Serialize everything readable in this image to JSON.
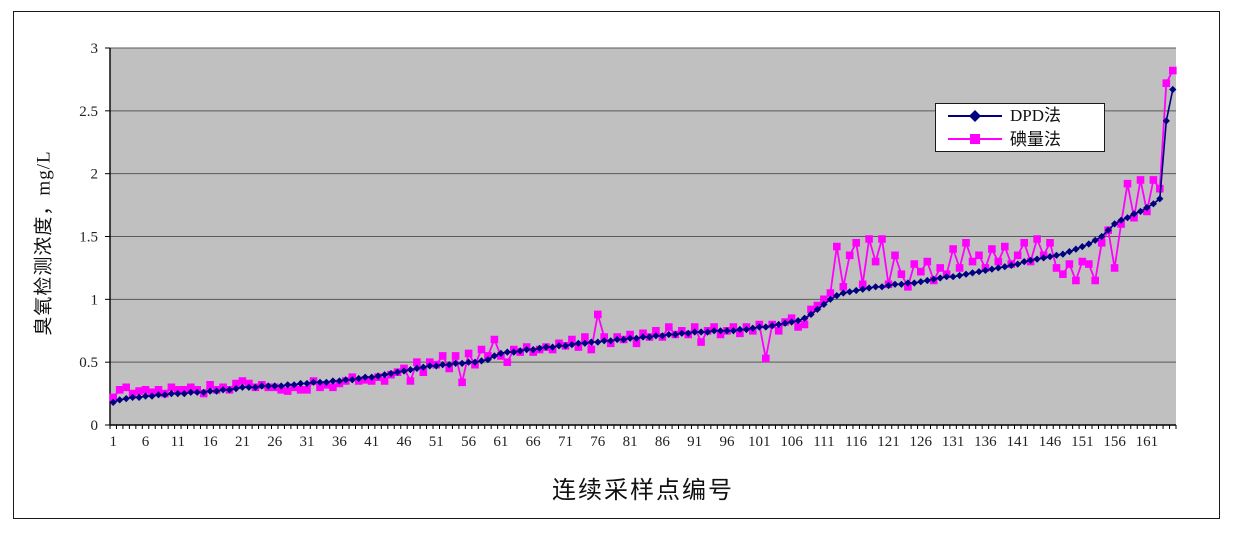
{
  "chart_data": {
    "type": "line",
    "title": "",
    "xlabel": "连续采样点编号",
    "ylabel": "臭氧检测浓度，mg/L",
    "x_tick_labels": [
      1,
      6,
      11,
      16,
      21,
      26,
      31,
      36,
      41,
      46,
      51,
      56,
      61,
      66,
      71,
      76,
      81,
      86,
      91,
      96,
      101,
      106,
      111,
      116,
      121,
      126,
      131,
      136,
      141,
      146,
      151,
      156,
      161
    ],
    "x_categories_start": 1,
    "x_categories_count": 165,
    "ylim": [
      0,
      3
    ],
    "y_ticks": [
      0,
      0.5,
      1,
      1.5,
      2,
      2.5,
      3
    ],
    "y_tick_labels": [
      "0",
      "0.5",
      "1",
      "1.5",
      "2",
      "2.5",
      "3"
    ],
    "grid": "horizontal",
    "plot_bg": "#c0c0c0",
    "grid_color": "#595959",
    "axis_color": "#000000",
    "legend_position": "inside-top-right",
    "series": [
      {
        "name": "DPD法",
        "color": "#000080",
        "marker": "diamond",
        "values": [
          0.18,
          0.2,
          0.21,
          0.22,
          0.22,
          0.23,
          0.23,
          0.24,
          0.24,
          0.25,
          0.25,
          0.25,
          0.26,
          0.26,
          0.26,
          0.27,
          0.27,
          0.28,
          0.28,
          0.29,
          0.3,
          0.3,
          0.3,
          0.31,
          0.31,
          0.31,
          0.31,
          0.32,
          0.32,
          0.33,
          0.33,
          0.34,
          0.34,
          0.34,
          0.35,
          0.35,
          0.36,
          0.36,
          0.37,
          0.38,
          0.38,
          0.39,
          0.4,
          0.41,
          0.42,
          0.43,
          0.44,
          0.45,
          0.46,
          0.47,
          0.47,
          0.48,
          0.48,
          0.49,
          0.49,
          0.5,
          0.5,
          0.51,
          0.52,
          0.55,
          0.57,
          0.58,
          0.58,
          0.59,
          0.6,
          0.6,
          0.61,
          0.62,
          0.62,
          0.63,
          0.63,
          0.64,
          0.65,
          0.65,
          0.66,
          0.66,
          0.67,
          0.67,
          0.68,
          0.68,
          0.69,
          0.69,
          0.7,
          0.7,
          0.71,
          0.71,
          0.72,
          0.72,
          0.73,
          0.73,
          0.74,
          0.74,
          0.74,
          0.75,
          0.75,
          0.75,
          0.75,
          0.76,
          0.76,
          0.77,
          0.78,
          0.78,
          0.79,
          0.8,
          0.81,
          0.82,
          0.83,
          0.85,
          0.88,
          0.92,
          0.96,
          1.0,
          1.03,
          1.05,
          1.06,
          1.07,
          1.08,
          1.09,
          1.1,
          1.1,
          1.11,
          1.12,
          1.12,
          1.13,
          1.13,
          1.14,
          1.15,
          1.16,
          1.17,
          1.18,
          1.18,
          1.19,
          1.2,
          1.21,
          1.22,
          1.23,
          1.24,
          1.25,
          1.26,
          1.27,
          1.28,
          1.3,
          1.31,
          1.32,
          1.33,
          1.34,
          1.35,
          1.36,
          1.38,
          1.4,
          1.42,
          1.44,
          1.47,
          1.5,
          1.55,
          1.6,
          1.63,
          1.65,
          1.68,
          1.7,
          1.73,
          1.76,
          1.8,
          2.42,
          2.67
        ]
      },
      {
        "name": "碘量法",
        "color": "#ff00ff",
        "marker": "square",
        "values": [
          0.22,
          0.28,
          0.3,
          0.25,
          0.27,
          0.28,
          0.26,
          0.28,
          0.25,
          0.3,
          0.28,
          0.28,
          0.3,
          0.28,
          0.25,
          0.32,
          0.28,
          0.3,
          0.28,
          0.33,
          0.35,
          0.33,
          0.3,
          0.32,
          0.3,
          0.3,
          0.28,
          0.27,
          0.3,
          0.28,
          0.28,
          0.35,
          0.3,
          0.32,
          0.3,
          0.33,
          0.35,
          0.38,
          0.35,
          0.36,
          0.35,
          0.38,
          0.35,
          0.4,
          0.42,
          0.45,
          0.35,
          0.5,
          0.42,
          0.5,
          0.48,
          0.55,
          0.45,
          0.55,
          0.34,
          0.57,
          0.48,
          0.6,
          0.55,
          0.68,
          0.55,
          0.5,
          0.6,
          0.58,
          0.62,
          0.58,
          0.6,
          0.62,
          0.6,
          0.65,
          0.63,
          0.68,
          0.62,
          0.7,
          0.6,
          0.88,
          0.7,
          0.65,
          0.7,
          0.68,
          0.72,
          0.65,
          0.73,
          0.7,
          0.75,
          0.7,
          0.78,
          0.72,
          0.75,
          0.72,
          0.78,
          0.66,
          0.75,
          0.78,
          0.72,
          0.75,
          0.78,
          0.73,
          0.78,
          0.75,
          0.8,
          0.53,
          0.8,
          0.75,
          0.82,
          0.85,
          0.78,
          0.8,
          0.92,
          0.95,
          1.0,
          1.05,
          1.42,
          1.1,
          1.35,
          1.45,
          1.12,
          1.48,
          1.3,
          1.48,
          1.12,
          1.35,
          1.2,
          1.1,
          1.28,
          1.22,
          1.3,
          1.15,
          1.25,
          1.2,
          1.4,
          1.25,
          1.45,
          1.3,
          1.35,
          1.25,
          1.4,
          1.3,
          1.42,
          1.28,
          1.35,
          1.45,
          1.3,
          1.48,
          1.35,
          1.45,
          1.25,
          1.2,
          1.28,
          1.15,
          1.3,
          1.28,
          1.15,
          1.45,
          1.55,
          1.25,
          1.6,
          1.92,
          1.65,
          1.95,
          1.7,
          1.95,
          1.88,
          2.72,
          2.82
        ]
      }
    ]
  }
}
